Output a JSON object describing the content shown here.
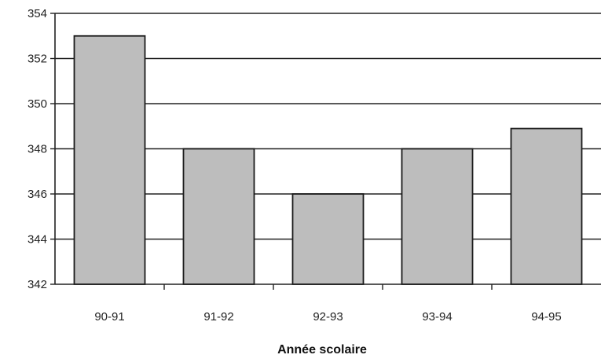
{
  "chart_data": {
    "type": "bar",
    "categories": [
      "90-91",
      "91-92",
      "92-93",
      "93-94",
      "94-95"
    ],
    "values": [
      353,
      348,
      346,
      348,
      348.9
    ],
    "title": "",
    "xlabel": "Année scolaire",
    "ylabel": "",
    "ylim": [
      342,
      354
    ],
    "yticks": [
      "342",
      "344",
      "346",
      "348",
      "350",
      "352",
      "354"
    ],
    "grid": true,
    "colors": {
      "bar_fill": "#bdbdbd",
      "bar_stroke": "#1a1a1a",
      "grid": "#222222",
      "axis": "#222222"
    }
  }
}
